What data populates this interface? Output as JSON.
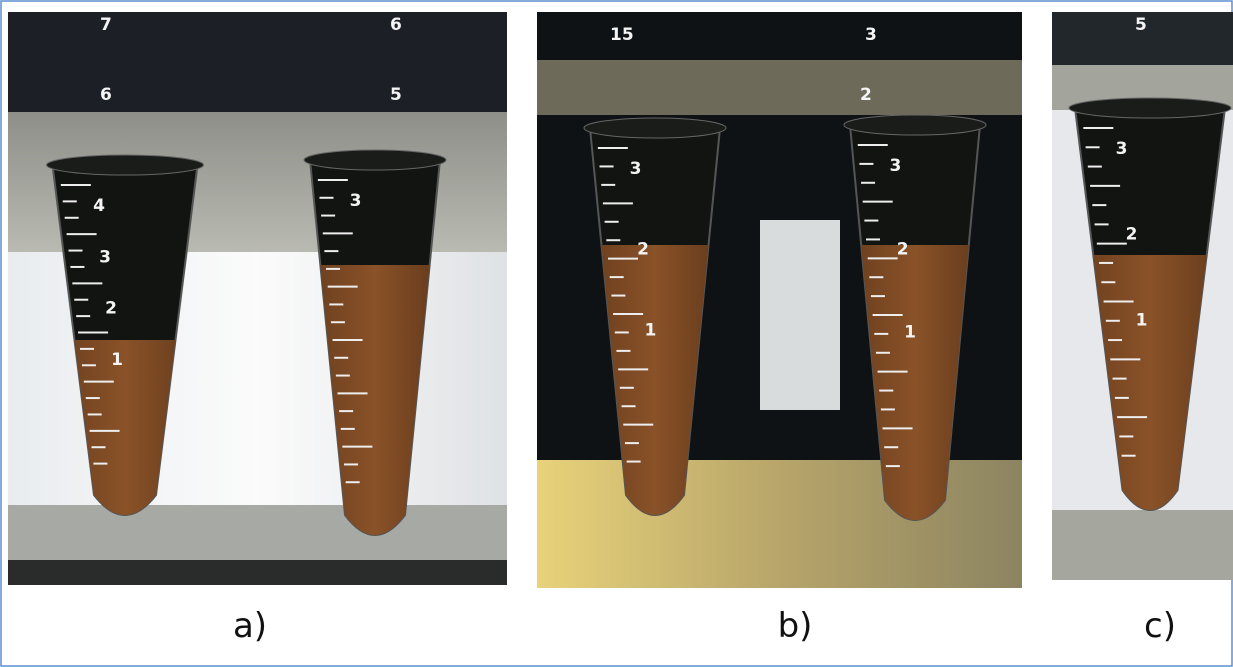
{
  "panels": [
    {
      "label": "a)",
      "background_marks": [
        "7",
        "6",
        "6",
        "5"
      ],
      "tubes": [
        {
          "marks": [
            "4",
            "3",
            "2",
            "1"
          ]
        },
        {
          "marks": [
            "3"
          ]
        }
      ]
    },
    {
      "label": "b)",
      "background_marks": [
        "15",
        "3",
        "2"
      ],
      "tubes": [
        {
          "marks": [
            "3",
            "2",
            "1"
          ]
        },
        {
          "marks": [
            "3",
            "2",
            "1"
          ]
        }
      ]
    },
    {
      "label": "c)",
      "background_marks": [
        "5"
      ],
      "tubes": [
        {
          "marks": [
            "3",
            "2",
            "1"
          ]
        }
      ]
    }
  ]
}
